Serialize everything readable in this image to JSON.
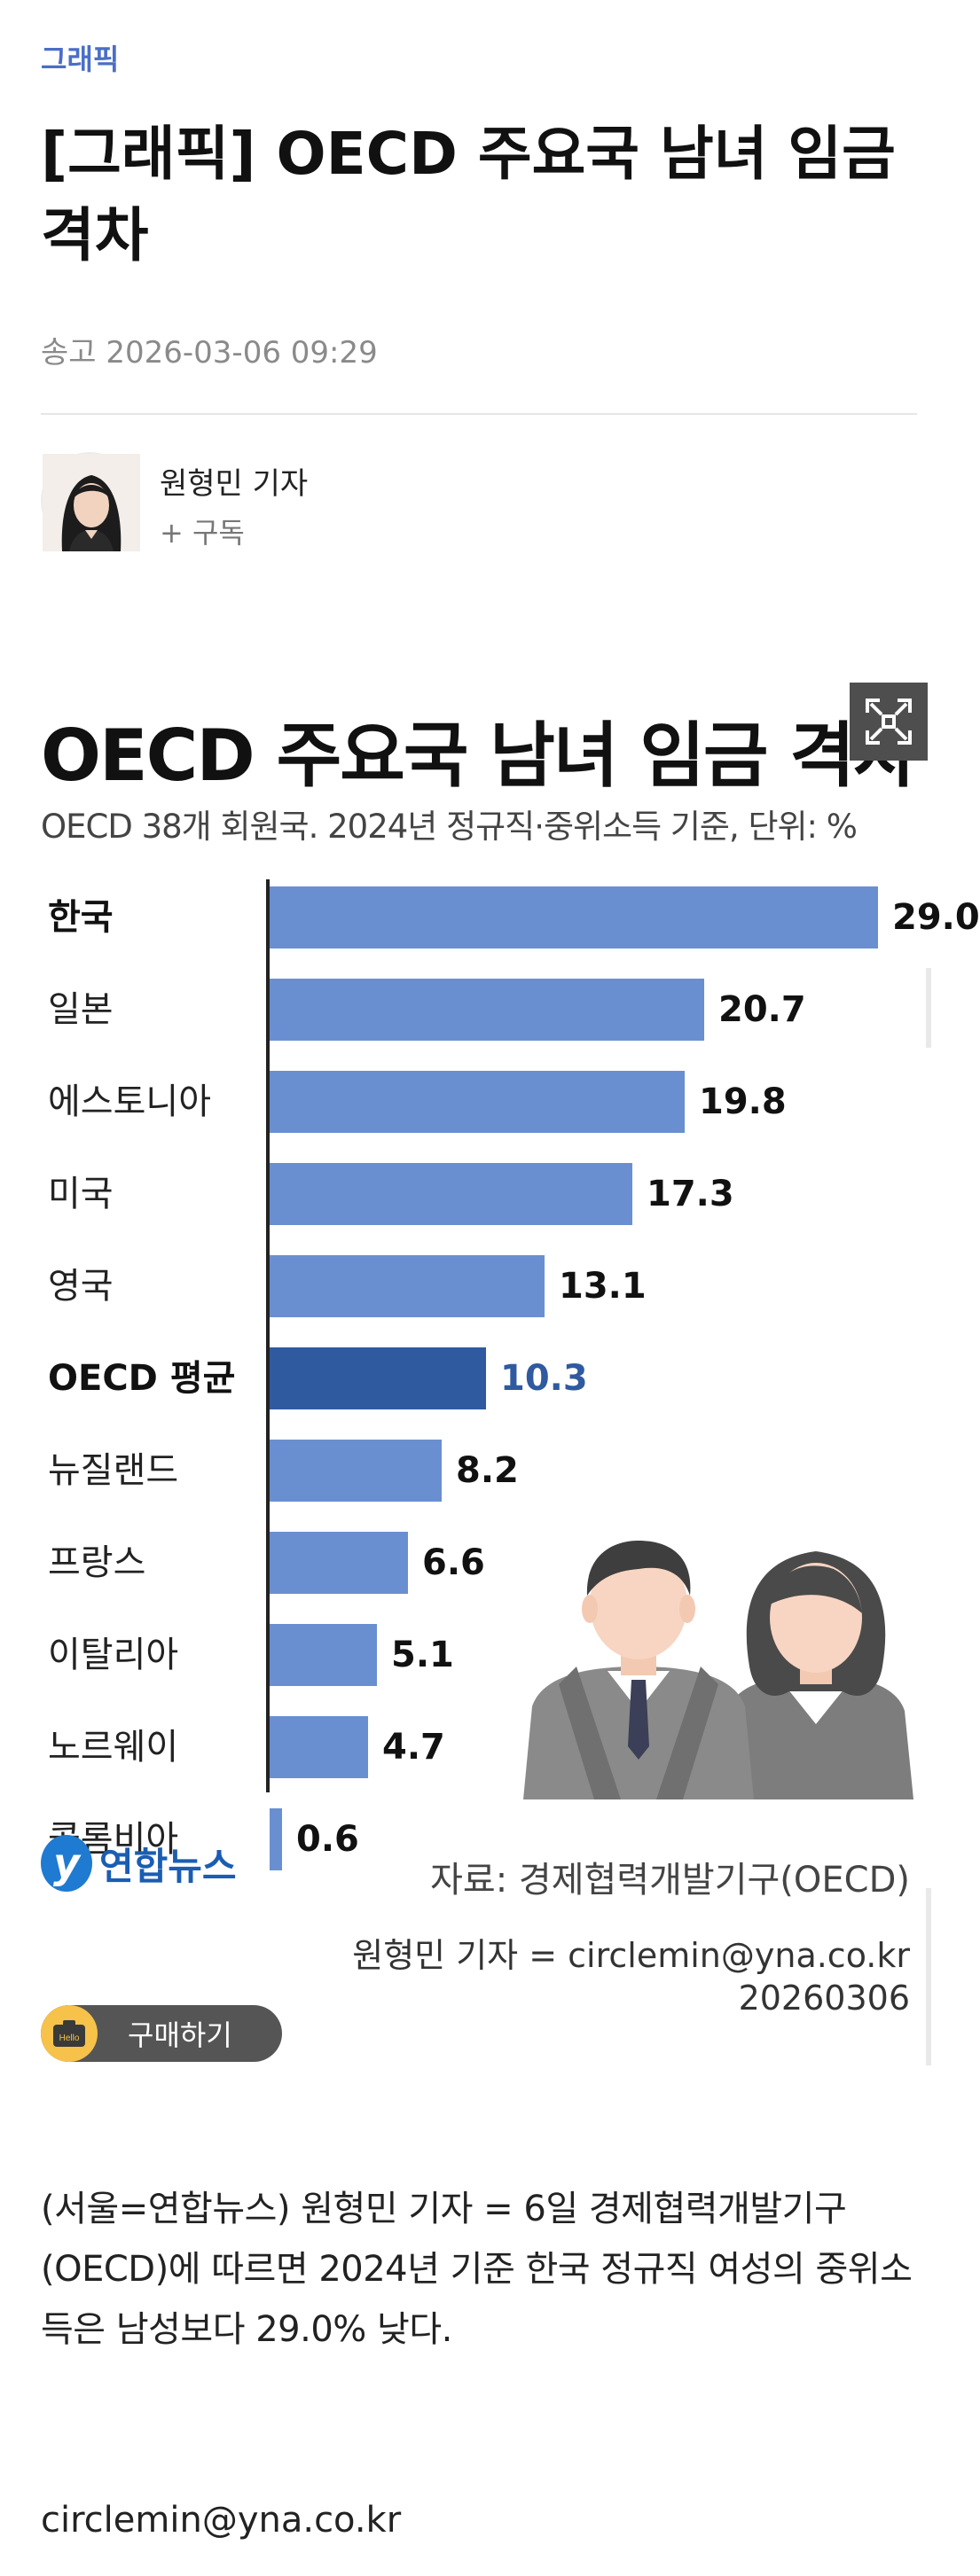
{
  "article": {
    "category": "그래픽",
    "headline": "[그래픽] OECD 주요국 남녀 임금 격차",
    "sent": "송고 2026-03-06 09:29",
    "reporter": "원형민 기자",
    "subscribe": "+ 구독",
    "body": "(서울=연합뉴스) 원형민 기자 = 6일 경제협력개발기구(OECD)에 따르면 2024년 기준 한국 정규직 여성의 중위소득은 남성보다 29.0% 낮다.",
    "email": "circlemin@yna.co.kr",
    "buy_label": "구매하기",
    "buy_icon_text": "Hello"
  },
  "graphic": {
    "logo_text": "연합뉴스",
    "logo_mark": "y",
    "source": "자료: 경제협력개발기구(OECD)",
    "credit_line1": "원형민 기자 = circlemin@yna.co.kr",
    "credit_line2": "20260306",
    "icons": {
      "expand": "expand-icon",
      "camera": "camera-icon",
      "people": "people-illustration"
    },
    "colors": {
      "bar": "#6a8fd0",
      "highlight": "#2f5aa0"
    }
  },
  "chart_data": {
    "type": "bar",
    "orientation": "horizontal",
    "title": "OECD 주요국 남녀 임금 격차",
    "subtitle": "OECD 38개 회원국. 2024년 정규직·중위소득 기준, 단위: %",
    "categories": [
      "한국",
      "일본",
      "에스토니아",
      "미국",
      "영국",
      "OECD 평균",
      "뉴질랜드",
      "프랑스",
      "이탈리아",
      "노르웨이",
      "콜롬비아"
    ],
    "values": [
      29.0,
      20.7,
      19.8,
      17.3,
      13.1,
      10.3,
      8.2,
      6.6,
      5.1,
      4.7,
      0.6
    ],
    "value_labels": [
      "29.0",
      "20.7",
      "19.8",
      "17.3",
      "13.1",
      "10.3",
      "8.2",
      "6.6",
      "5.1",
      "4.7",
      "0.6"
    ],
    "bold_categories": [
      "한국",
      "OECD 평균"
    ],
    "highlight": "OECD 평균",
    "xlim": [
      0,
      29.0
    ],
    "grid": false,
    "legend": "none"
  }
}
